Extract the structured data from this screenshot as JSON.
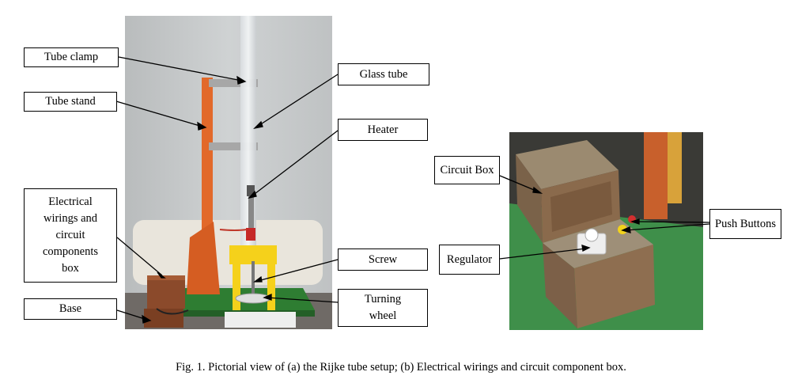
{
  "figure": {
    "caption": "Fig. 1. Pictorial view of (a) the Rijke tube setup; (b) Electrical wirings and circuit component box.",
    "panel_a_labels": {
      "tube_clamp": "Tube clamp",
      "tube_stand": "Tube stand",
      "electrical_box": "Electrical wirings and circuit components box",
      "base": "Base",
      "glass_tube": "Glass tube",
      "heater": "Heater",
      "screw": "Screw",
      "turning_wheel": "Turning wheel"
    },
    "panel_b_labels": {
      "circuit_box": "Circuit Box",
      "regulator": "Regulator",
      "push_buttons": "Push Buttons"
    }
  }
}
